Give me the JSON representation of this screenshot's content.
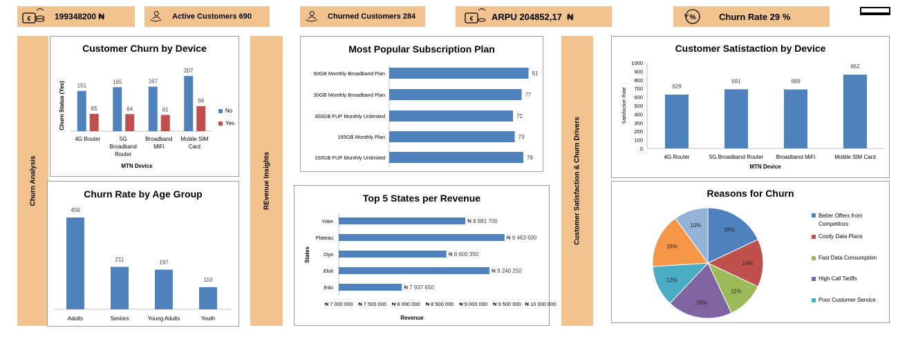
{
  "kpis": {
    "revenue": "199348200 ₦",
    "active": "Active Customers 690",
    "churned": "Churned Customers 284",
    "arpu": "ARPU 204852,17  ₦",
    "churn_rate": "Churn Rate 29 %"
  },
  "side_labels": {
    "churn_analysis": "Churn Analysis",
    "revenue_insights": "REvenue Insights",
    "satisfaction": "Customer Satisfaction & Churn Drivers"
  },
  "chart_data": [
    {
      "id": "churn_by_device",
      "type": "bar",
      "title": "Customer Churn by Device",
      "xlabel": "MTN Device",
      "ylabel": "Churn Status (Yes)",
      "categories": [
        "4G Router",
        "5G Broadband Router",
        "Broadband MiFi",
        "Mobile SIM Card"
      ],
      "series": [
        {
          "name": "No",
          "values": [
            151,
            165,
            167,
            207
          ],
          "color": "#4f81bd"
        },
        {
          "name": "Yes",
          "values": [
            65,
            64,
            61,
            94
          ],
          "color": "#c0504d"
        }
      ],
      "legend": "right"
    },
    {
      "id": "churn_rate_age",
      "type": "bar",
      "title": "Churn Rate by Age Group",
      "categories": [
        "Adults",
        "Seniors",
        "Young Adults",
        "Youth"
      ],
      "values": [
        456,
        211,
        197,
        110
      ],
      "color": "#4f81bd"
    },
    {
      "id": "subscription_plans",
      "type": "bar",
      "orientation": "horizontal",
      "title": "Most Popular Subscription Plan",
      "categories": [
        "60GB Monthly Broadband Plan",
        "30GB Monthly Broadband Plan",
        "300GB FUP Monthly Unlimited",
        "165GB Monthly Plan",
        "150GB FUP Monthly Unlimited"
      ],
      "values": [
        81,
        77,
        72,
        73,
        78
      ],
      "color": "#4f81bd"
    },
    {
      "id": "top_states",
      "type": "bar",
      "orientation": "horizontal",
      "title": "Top 5 States per Revenue",
      "xlabel": "Revenue",
      "ylabel": "States",
      "categories": [
        "Yobe",
        "Plateau",
        "Oyo",
        "Ekiti",
        "Edo"
      ],
      "values": [
        8881700,
        9463600,
        8600350,
        9240250,
        7937650
      ],
      "value_labels": [
        "₦ 8 881 700",
        "₦ 9 463 600",
        "₦ 8 600 350",
        "₦ 9 240 250",
        "₦ 7 937 650"
      ],
      "xlim": [
        7000000,
        10000000
      ],
      "xticks": [
        "₦ 7 000 000",
        "₦ 7 500 000",
        "₦ 8 000 000",
        "₦ 8 500 000",
        "₦ 9 000 000",
        "₦ 9 500 000",
        "₦ 10 000 000"
      ],
      "color": "#4f81bd"
    },
    {
      "id": "satisfaction_device",
      "type": "bar",
      "title": "Customer Satistaction by Device",
      "xlabel": "MTN Device",
      "ylabel": "Satisfaction  Rate",
      "categories": [
        "4G Router",
        "5G Broadband Router",
        "Broadband MiFi",
        "Mobile SIM Card"
      ],
      "values": [
        629,
        691,
        689,
        862
      ],
      "ylim": [
        0,
        1000
      ],
      "yticks": [
        0,
        100,
        200,
        300,
        400,
        500,
        600,
        700,
        800,
        900,
        1000
      ],
      "grid": false,
      "color": "#4f81bd"
    },
    {
      "id": "churn_reasons",
      "type": "pie",
      "title": "Reasons for Churn",
      "categories": [
        "Better Offers from Competitors",
        "Costly Data Plans",
        "Fast Data Consumption",
        "High Call Tariffs",
        "Poor Customer Service",
        "",
        ""
      ],
      "values": [
        18,
        14,
        11,
        19,
        12,
        16,
        10
      ],
      "labels": [
        "18%",
        "14%",
        "11%",
        "19%",
        "12%",
        "16%",
        "10%"
      ],
      "colors": [
        "#4f81bd",
        "#c0504d",
        "#9bbb59",
        "#8064a2",
        "#4bacc6",
        "#f79646",
        "#95b3d7"
      ],
      "legend": "right"
    }
  ]
}
